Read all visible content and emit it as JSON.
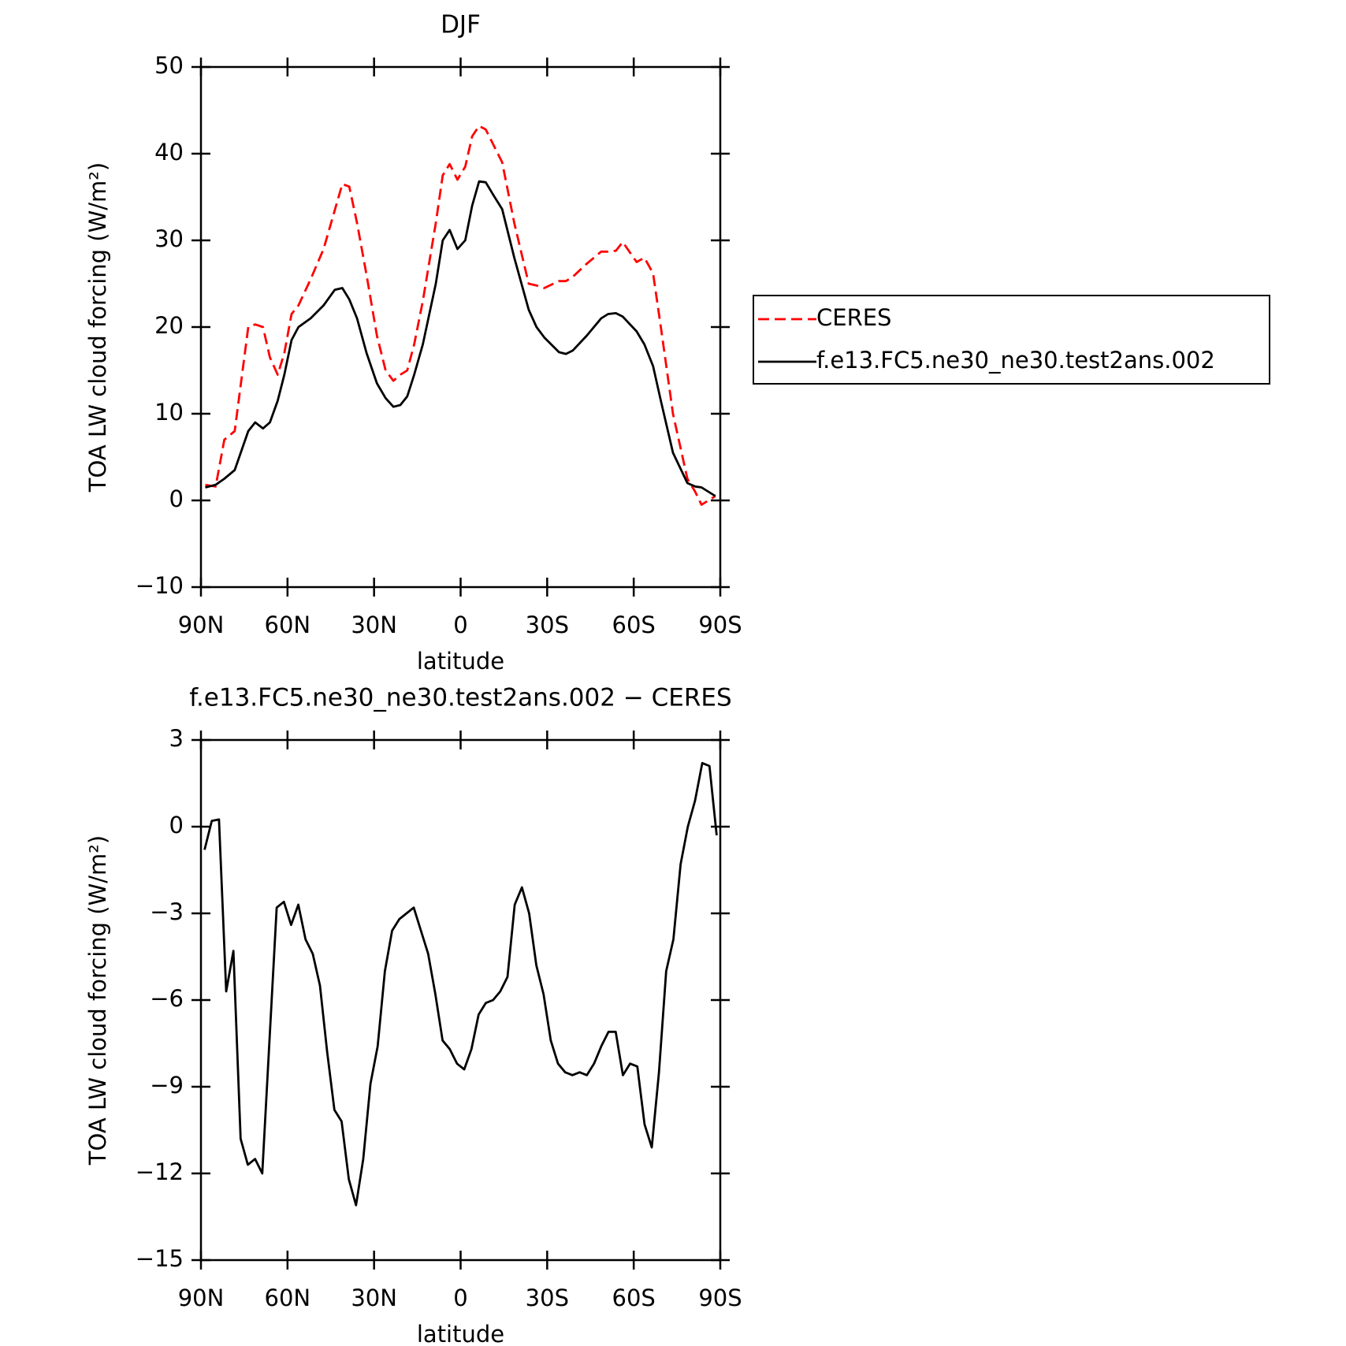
{
  "chart_data": [
    {
      "type": "line",
      "title": "DJF",
      "x_label": "latitude",
      "y_label": "TOA LW cloud forcing (W/m²)",
      "xlim": [
        90,
        -90
      ],
      "xticks": [
        {
          "value": 90,
          "label": "90N"
        },
        {
          "value": 60,
          "label": "60N"
        },
        {
          "value": 30,
          "label": "30N"
        },
        0,
        {
          "value": -30,
          "label": "30S"
        },
        {
          "value": -60,
          "label": "60S"
        },
        {
          "value": -90,
          "label": "90S"
        }
      ],
      "ylim": [
        -10,
        50
      ],
      "yticks": [
        {
          "value": -10,
          "label": "−10"
        },
        0,
        10,
        20,
        30,
        40,
        50
      ],
      "legend": "right",
      "x": [
        88.5,
        84.9,
        81.9,
        78.3,
        73.6,
        71.2,
        68.5,
        66.1,
        63.4,
        61.1,
        58.6,
        56.2,
        52.0,
        47.5,
        43.6,
        41.0,
        38.6,
        35.9,
        32.6,
        29.0,
        26.0,
        23.3,
        20.9,
        18.5,
        16.1,
        13.1,
        8.6,
        6.2,
        3.8,
        1.1,
        -1.6,
        -4.0,
        -6.4,
        -8.7,
        -11.4,
        -14.4,
        -18.6,
        -23.6,
        -26.3,
        -29.0,
        -34.1,
        -36.5,
        -38.9,
        -43.7,
        -48.7,
        -51.1,
        -53.8,
        -56.2,
        -61.0,
        -63.7,
        -66.7,
        -69.4,
        -73.6,
        -78.6,
        -81.3,
        -83.5,
        -88.3
      ],
      "series": [
        {
          "name": "CERES",
          "color": "#ff0000",
          "dashed": true,
          "values": [
            1.8,
            1.6,
            7,
            8,
            20,
            20.3,
            20,
            16.5,
            14.5,
            17,
            21.5,
            22.5,
            25.5,
            29,
            33.5,
            36.5,
            36.2,
            32,
            26,
            19,
            15,
            13.8,
            14.5,
            15,
            18,
            23,
            32,
            37.5,
            38.8,
            37,
            38.5,
            42,
            43.2,
            42.8,
            41,
            39,
            32,
            25,
            24.8,
            24.5,
            25.3,
            25.3,
            25.8,
            27.3,
            28.7,
            28.7,
            28.8,
            29.8,
            27.5,
            28,
            26.2,
            20,
            10,
            2.5,
            1,
            -0.5,
            0.5
          ]
        },
        {
          "name": "f.e13.FC5.ne30_ne30.test2ans.002",
          "color": "#000000",
          "dashed": false,
          "values": [
            1.5,
            1.8,
            2.5,
            3.5,
            8,
            9,
            8.3,
            9,
            11.5,
            14.5,
            18.5,
            20,
            21,
            22.5,
            24.3,
            24.5,
            23.2,
            21,
            17,
            13.5,
            11.8,
            10.8,
            11,
            12,
            14.5,
            18,
            25,
            30,
            31.2,
            29,
            30,
            34,
            36.8,
            36.7,
            35.2,
            33.6,
            28,
            22,
            20,
            18.8,
            17.1,
            16.9,
            17.3,
            19,
            21,
            21.5,
            21.6,
            21.2,
            19.5,
            18,
            15.5,
            11.5,
            5.5,
            2,
            1.6,
            1.5,
            0.5
          ]
        }
      ]
    },
    {
      "type": "line",
      "title": "f.e13.FC5.ne30_ne30.test2ans.002 − CERES",
      "x_label": "latitude",
      "y_label": "TOA LW cloud forcing (W/m²)",
      "xlim": [
        90,
        -90
      ],
      "xticks": [
        {
          "value": 90,
          "label": "90N"
        },
        {
          "value": 60,
          "label": "60N"
        },
        {
          "value": 30,
          "label": "30N"
        },
        0,
        {
          "value": -30,
          "label": "30S"
        },
        {
          "value": -60,
          "label": "60S"
        },
        {
          "value": -90,
          "label": "90S"
        }
      ],
      "ylim": [
        -15,
        3
      ],
      "yticks": [
        {
          "value": -15,
          "label": "−15"
        },
        {
          "value": -12,
          "label": "−12"
        },
        {
          "value": -9,
          "label": "−9"
        },
        {
          "value": -6,
          "label": "−6"
        },
        {
          "value": -3,
          "label": "−3"
        },
        0,
        3
      ],
      "x": [
        88.75,
        86.25,
        83.75,
        81.25,
        78.75,
        76.25,
        73.75,
        71.25,
        68.75,
        66.25,
        63.75,
        61.25,
        58.75,
        56.25,
        53.75,
        51.25,
        48.75,
        46.25,
        43.75,
        41.25,
        38.75,
        36.25,
        33.75,
        31.25,
        28.75,
        26.25,
        23.75,
        21.25,
        18.75,
        16.25,
        13.75,
        11.25,
        8.75,
        6.25,
        3.75,
        1.25,
        -1.25,
        -3.75,
        -6.25,
        -8.75,
        -11.25,
        -13.75,
        -16.25,
        -18.75,
        -21.25,
        -23.75,
        -26.25,
        -28.75,
        -31.25,
        -33.75,
        -36.25,
        -38.75,
        -41.25,
        -43.75,
        -46.25,
        -48.75,
        -51.25,
        -53.75,
        -56.25,
        -58.75,
        -61.25,
        -63.75,
        -66.25,
        -68.75,
        -71.25,
        -73.75,
        -76.25,
        -78.75,
        -81.25,
        -83.75,
        -86.25,
        -88.75
      ],
      "color": "#000000",
      "values": [
        -0.8,
        0.2,
        0.25,
        -5.7,
        -4.3,
        -10.8,
        -11.7,
        -11.5,
        -12,
        -7.4,
        -2.8,
        -2.6,
        -3.4,
        -2.7,
        -3.9,
        -4.4,
        -5.5,
        -7.8,
        -9.8,
        -10.2,
        -12.2,
        -13.1,
        -11.5,
        -8.9,
        -7.6,
        -5,
        -3.6,
        -3.2,
        -3,
        -2.8,
        -3.6,
        -4.4,
        -5.8,
        -7.4,
        -7.7,
        -8.2,
        -8.4,
        -7.7,
        -6.5,
        -6.1,
        -6,
        -5.7,
        -5.2,
        -2.7,
        -2.1,
        -3,
        -4.8,
        -5.8,
        -7.4,
        -8.2,
        -8.5,
        -8.6,
        -8.5,
        -8.6,
        -8.2,
        -7.6,
        -7.1,
        -7.1,
        -8.6,
        -8.2,
        -8.3,
        -10.3,
        -11.1,
        -8.5,
        -5,
        -3.9,
        -1.3,
        0,
        0.9,
        2.2,
        2.1,
        -0.3
      ]
    }
  ]
}
